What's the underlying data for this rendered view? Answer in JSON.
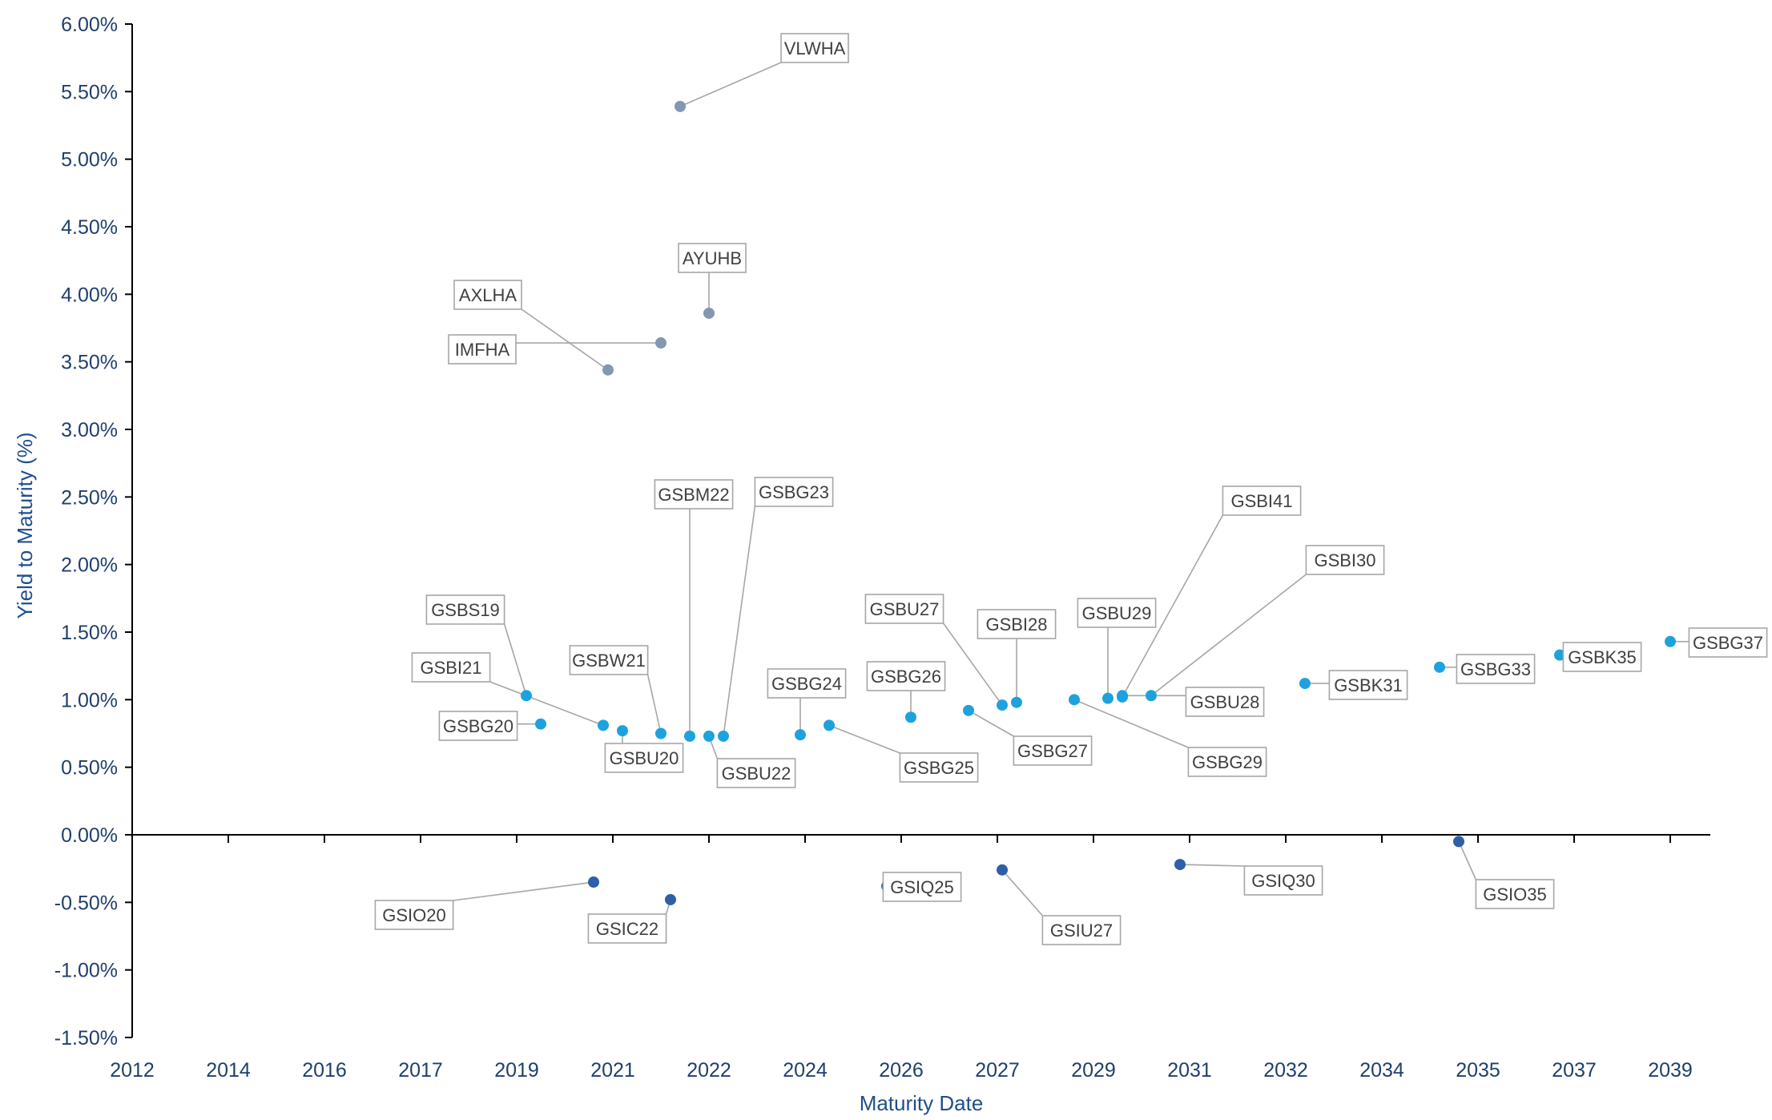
{
  "chart_data": {
    "type": "scatter",
    "xlabel": "Maturity Date",
    "ylabel": "Yield to Maturity (%)",
    "ylim": [
      -1.5,
      6.0
    ],
    "y_ticks": [
      "6.00%",
      "5.50%",
      "5.00%",
      "4.50%",
      "4.00%",
      "3.50%",
      "3.00%",
      "2.50%",
      "2.00%",
      "1.50%",
      "1.00%",
      "0.50%",
      "0.00%",
      "-0.50%",
      "-1.00%",
      "-1.50%"
    ],
    "x_ticks": [
      "2012",
      "2014",
      "2016",
      "2017",
      "2019",
      "2021",
      "2022",
      "2024",
      "2026",
      "2027",
      "2029",
      "2031",
      "2032",
      "2034",
      "2035",
      "2037",
      "2039"
    ],
    "grid": false,
    "legend": "none",
    "colors": {
      "gray": "#8497b0",
      "light": "#1ea2de",
      "dark": "#2e5fa8"
    },
    "points": [
      {
        "name": "VLWHA",
        "x": 2021.7,
        "y": 5.39,
        "color": "gray"
      },
      {
        "name": "AYUHB",
        "x": 2022.0,
        "y": 3.86,
        "color": "gray"
      },
      {
        "name": "AXLHA",
        "x": 2020.9,
        "y": 3.44,
        "color": "gray"
      },
      {
        "name": "IMFHA",
        "x": 2021.5,
        "y": 3.64,
        "color": "gray"
      },
      {
        "name": "GSBS19",
        "x": 2019.2,
        "y": 1.03,
        "color": "light"
      },
      {
        "name": "GSBG20",
        "x": 2019.5,
        "y": 0.82,
        "color": "light"
      },
      {
        "name": "GSBI21",
        "x": 2020.8,
        "y": 0.81,
        "color": "light"
      },
      {
        "name": "GSBU20",
        "x": 2021.1,
        "y": 0.77,
        "color": "light"
      },
      {
        "name": "GSBW21",
        "x": 2021.5,
        "y": 0.75,
        "color": "light"
      },
      {
        "name": "GSBM22",
        "x": 2021.8,
        "y": 0.73,
        "color": "light"
      },
      {
        "name": "GSBU22",
        "x": 2022.0,
        "y": 0.73,
        "color": "light"
      },
      {
        "name": "GSBG23",
        "x": 2022.3,
        "y": 0.73,
        "color": "light"
      },
      {
        "name": "GSBG24",
        "x": 2023.9,
        "y": 0.74,
        "color": "light"
      },
      {
        "name": "GSBG25",
        "x": 2024.5,
        "y": 0.81,
        "color": "light"
      },
      {
        "name": "GSBG26",
        "x": 2026.1,
        "y": 0.87,
        "color": "light"
      },
      {
        "name": "GSBG27",
        "x": 2026.7,
        "y": 0.92,
        "color": "light"
      },
      {
        "name": "GSBU27",
        "x": 2027.1,
        "y": 0.96,
        "color": "light"
      },
      {
        "name": "GSBI28",
        "x": 2027.4,
        "y": 0.98,
        "color": "light"
      },
      {
        "name": "GSBG29",
        "x": 2028.6,
        "y": 1.0,
        "color": "light"
      },
      {
        "name": "GSBU29",
        "x": 2029.3,
        "y": 1.01,
        "color": "light"
      },
      {
        "name": "GSBI41",
        "x": 2029.6,
        "y": 1.02,
        "color": "light"
      },
      {
        "name": "GSBU28",
        "x": 2029.6,
        "y": 1.03,
        "color": "light"
      },
      {
        "name": "GSBI30",
        "x": 2030.2,
        "y": 1.03,
        "color": "light"
      },
      {
        "name": "GSBK31",
        "x": 2032.4,
        "y": 1.12,
        "color": "light"
      },
      {
        "name": "GSBG33",
        "x": 2034.6,
        "y": 1.24,
        "color": "light"
      },
      {
        "name": "GSBK35",
        "x": 2036.7,
        "y": 1.33,
        "color": "light"
      },
      {
        "name": "GSBG37",
        "x": 2039.1,
        "y": 1.43,
        "color": "light"
      },
      {
        "name": "GSIO20",
        "x": 2020.6,
        "y": -0.35,
        "color": "dark"
      },
      {
        "name": "GSIC22",
        "x": 2021.6,
        "y": -0.48,
        "color": "dark"
      },
      {
        "name": "GSIQ25",
        "x": 2025.7,
        "y": -0.38,
        "color": "dark"
      },
      {
        "name": "GSIU27",
        "x": 2027.1,
        "y": -0.26,
        "color": "dark"
      },
      {
        "name": "GSIQ30",
        "x": 2030.8,
        "y": -0.22,
        "color": "dark"
      },
      {
        "name": "GSIO35",
        "x": 2034.8,
        "y": -0.05,
        "color": "dark"
      }
    ]
  }
}
